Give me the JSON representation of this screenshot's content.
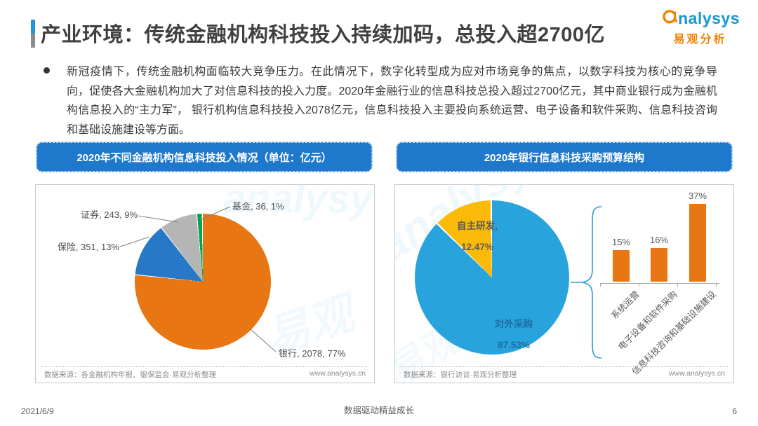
{
  "colors": {
    "header_blue": "#1E78CC",
    "accent_blue": "#2196D9",
    "accent_gray": "#8C8C8C",
    "brand_blue": "#1797D3",
    "brand_orange": "#F08300",
    "bank_orange": "#E87612",
    "insurance_blue": "#2878C8",
    "securities_gray": "#B5B5B5",
    "fund_green": "#00A650",
    "outsource_blue": "#29A3DC",
    "inhouse_yellow": "#FBBA07",
    "brace_blue": "#2E9BD6"
  },
  "page": {
    "title": "产业环境：传统金融机构科技投入持续加码，总投入超2700亿",
    "footer_date": "2021/6/9",
    "footer_slogan": "数据驱动精益成长",
    "footer_page": "6"
  },
  "logo": {
    "icon": "analysys-swirl-icon",
    "brand": "nalysys",
    "cn": "易观分析"
  },
  "watermark": {
    "brand": "analysys",
    "cn": "易观"
  },
  "bullet": {
    "text": "新冠疫情下，传统金融机构面临较大竞争压力。在此情况下，数字化转型成为应对市场竞争的焦点，以数字科技为核心的竞争导向，促使各大金融机构加大了对信息科技的投入力度。2020年金融行业的信息科技总投入超过2700亿元，其中商业银行成为金融机构信息投入的“主力军”， 银行机构信息科技投入2078亿元，信息科技投入主要投向系统运营、电子设备和软件采购、信息科技咨询和基础设施建设等方面。"
  },
  "left_chart": {
    "header": "2020年不同金融机构信息科技投入情况（单位：亿元）",
    "source": "数据来源：各金融机构年报、银保监会·易观分析整理",
    "site": "www.analysys.cn"
  },
  "right_chart": {
    "header": "2020年银行信息科技采购预算结构",
    "source": "数据来源：银行访谈·易观分析整理",
    "site": "www.analysys.cn"
  },
  "chart_data": [
    {
      "type": "pie",
      "title": "2020年不同金融机构信息科技投入情况（单位：亿元）",
      "unit": "亿元",
      "legend_position": "none",
      "slices": [
        {
          "label": "银行",
          "value": 2078,
          "pct": "77%",
          "color": "#E87612",
          "callout": "银行, 2078, 77%"
        },
        {
          "label": "保险",
          "value": 351,
          "pct": "13%",
          "color": "#2878C8",
          "callout": "保险, 351, 13%"
        },
        {
          "label": "证券",
          "value": 243,
          "pct": "9%",
          "color": "#B5B5B5",
          "callout": "证券, 243, 9%"
        },
        {
          "label": "基金",
          "value": 36,
          "pct": "1%",
          "color": "#00A650",
          "callout": "基金, 36, 1%"
        }
      ]
    },
    {
      "type": "pie",
      "title": "2020年银行信息科技采购预算结构",
      "legend_position": "none",
      "slices": [
        {
          "label": "对外采购",
          "value": 87.53,
          "pct": "87.53%",
          "color": "#29A3DC",
          "callout_line1": "对外采购",
          "callout_line2": "87.53%"
        },
        {
          "label": "自主研发",
          "value": 12.47,
          "pct": "12.47%",
          "color": "#FBBA07",
          "callout_line1": "自主研发,",
          "callout_line2": "12.47%"
        }
      ]
    },
    {
      "type": "bar",
      "title": "对外采购预算结构（占比）",
      "categories": [
        "系统运营",
        "电子设备和软件采购",
        "信息科技咨询和基础设施建设"
      ],
      "values": [
        15,
        16,
        37
      ],
      "labels": [
        "15%",
        "16%",
        "37%"
      ],
      "bar_color": "#E87612",
      "ylim": [
        0,
        40
      ],
      "grid": false
    }
  ]
}
